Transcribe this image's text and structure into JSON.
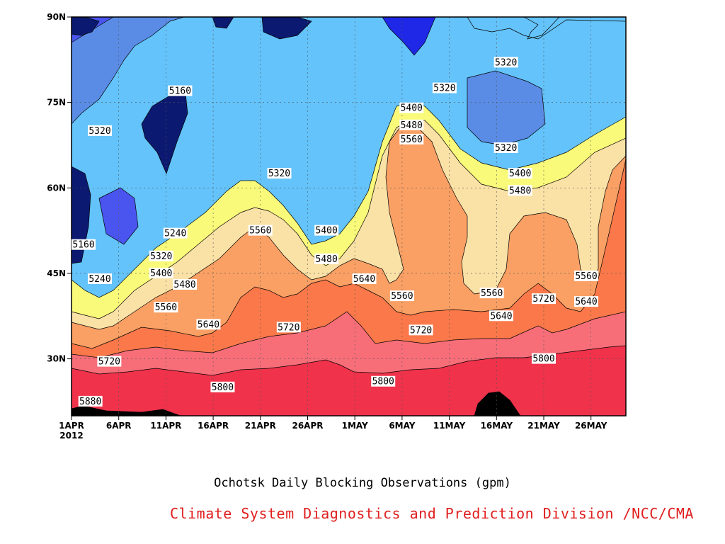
{
  "colors": {
    "band_colors": [
      "#0b1a70",
      "#1e28e6",
      "#4a55f0",
      "#5a8ce6",
      "#64c3fa",
      "#fafa7a",
      "#fae1a6",
      "#faa064",
      "#fa7849",
      "#f76e79",
      "#f0324b"
    ],
    "credit_color": "#e01e1e"
  },
  "chart_data": {
    "type": "heatmap",
    "subtype": "filled-contour",
    "x": [
      "1APR",
      "6APR",
      "11APR",
      "16APR",
      "21APR",
      "26APR",
      "1MAY",
      "6MAY",
      "11MAY",
      "16MAY",
      "21MAY",
      "26MAY"
    ],
    "x_year_label": "2012",
    "y_ticks": [
      "30N",
      "45N",
      "60N",
      "75N",
      "90N"
    ],
    "ylim": [
      20,
      90
    ],
    "xlim": [
      "2012-04-01",
      "2012-05-30"
    ],
    "levels": [
      5080,
      5160,
      5240,
      5320,
      5400,
      5480,
      5560,
      5640,
      5720,
      5800,
      5880
    ],
    "contour_labels": [
      {
        "text": "5160",
        "day": 11.5,
        "lat": 77
      },
      {
        "text": "5320",
        "day": 3,
        "lat": 70
      },
      {
        "text": "5320",
        "day": 22,
        "lat": 62.5
      },
      {
        "text": "5320",
        "day": 39.5,
        "lat": 77.5
      },
      {
        "text": "5320",
        "day": 46,
        "lat": 82
      },
      {
        "text": "5320",
        "day": 46,
        "lat": 67
      },
      {
        "text": "5400",
        "day": 36,
        "lat": 74
      },
      {
        "text": "5480",
        "day": 36,
        "lat": 71
      },
      {
        "text": "5560",
        "day": 36,
        "lat": 68.5
      },
      {
        "text": "5400",
        "day": 47.5,
        "lat": 62.5
      },
      {
        "text": "5480",
        "day": 47.5,
        "lat": 59.5
      },
      {
        "text": "5160",
        "day": 0,
        "lat": 50
      },
      {
        "text": "5240",
        "day": 3,
        "lat": 44
      },
      {
        "text": "5240",
        "day": 11,
        "lat": 52
      },
      {
        "text": "5320",
        "day": 9.5,
        "lat": 48
      },
      {
        "text": "5400",
        "day": 9.5,
        "lat": 45
      },
      {
        "text": "5480",
        "day": 12,
        "lat": 43
      },
      {
        "text": "5560",
        "day": 20,
        "lat": 52.5
      },
      {
        "text": "5400",
        "day": 27,
        "lat": 52.5
      },
      {
        "text": "5480",
        "day": 27,
        "lat": 47.5
      },
      {
        "text": "5560",
        "day": 10,
        "lat": 39
      },
      {
        "text": "5640",
        "day": 31,
        "lat": 44
      },
      {
        "text": "5560",
        "day": 35,
        "lat": 41
      },
      {
        "text": "5560",
        "day": 44.5,
        "lat": 41.5
      },
      {
        "text": "5640",
        "day": 45.5,
        "lat": 37.5
      },
      {
        "text": "5560",
        "day": 54.5,
        "lat": 44.5
      },
      {
        "text": "5640",
        "day": 54.5,
        "lat": 40
      },
      {
        "text": "5720",
        "day": 50,
        "lat": 40.5
      },
      {
        "text": "5640",
        "day": 14.5,
        "lat": 36
      },
      {
        "text": "5720",
        "day": 23,
        "lat": 35.5
      },
      {
        "text": "5720",
        "day": 37,
        "lat": 35
      },
      {
        "text": "5720",
        "day": 4,
        "lat": 29.5
      },
      {
        "text": "5800",
        "day": 16,
        "lat": 25
      },
      {
        "text": "5800",
        "day": 33,
        "lat": 26
      },
      {
        "text": "5800",
        "day": 50,
        "lat": 30
      },
      {
        "text": "5880",
        "day": 2,
        "lat": 22.5
      }
    ],
    "title": "Ochotsk Daily Blocking Observations (gpm)",
    "credit": "Climate System Diagnostics and Prediction Division /NCC/CMA"
  }
}
